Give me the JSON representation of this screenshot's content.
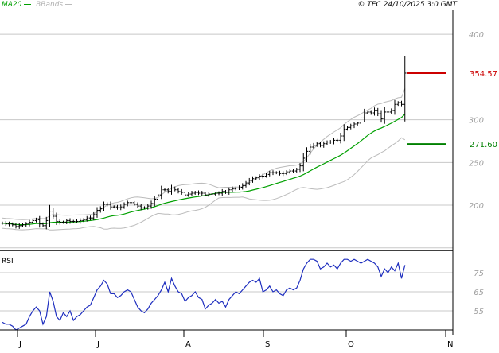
{
  "header": {
    "ma_label": "MA20",
    "bbands_label": "BBands",
    "copyright": "© TEC 24/10/2025 3:0 GMT"
  },
  "rsi_panel": {
    "label": "RSI"
  },
  "colors": {
    "price": "#000000",
    "ma": "#00a000",
    "bbands": "#bbbbbb",
    "rsi": "#1f2fbf",
    "grid": "#c8c8c8",
    "axis_text": "#a0a0a0",
    "high_marker": "#cc0000",
    "low_marker": "#008000"
  },
  "chart_data": [
    {
      "type": "ohlc",
      "title": "",
      "x_tick_labels": [
        "J",
        "J",
        "A",
        "S",
        "O",
        "N"
      ],
      "y_ticks": [
        200,
        250,
        300,
        400
      ],
      "y_tick_labels": [
        "200",
        "250",
        "300",
        "400"
      ],
      "ylim": [
        147,
        429
      ],
      "grid": true,
      "markers": [
        {
          "label": "354.57",
          "value": 354.57,
          "kind": "high"
        },
        {
          "label": "271.60",
          "value": 271.6,
          "kind": "low"
        }
      ],
      "series": [
        {
          "name": "MA20",
          "kind": "ma"
        },
        {
          "name": "BBands",
          "kind": "bands"
        }
      ],
      "close": [
        179,
        178,
        178,
        177,
        175,
        176,
        177,
        178,
        180,
        182,
        183,
        178,
        176,
        182,
        193,
        187,
        181,
        180,
        180,
        182,
        181,
        181,
        181,
        182,
        183,
        185,
        185,
        189,
        194,
        196,
        201,
        201,
        198,
        198,
        197,
        198,
        201,
        203,
        203,
        201,
        199,
        197,
        197,
        199,
        202,
        207,
        212,
        218,
        218,
        216,
        220,
        218,
        216,
        215,
        212,
        213,
        214,
        215,
        214,
        214,
        212,
        213,
        213,
        214,
        214,
        216,
        215,
        218,
        219,
        220,
        221,
        223,
        226,
        229,
        231,
        232,
        234,
        234,
        236,
        238,
        238,
        238,
        237,
        237,
        239,
        240,
        240,
        242,
        246,
        255,
        263,
        268,
        270,
        272,
        270,
        272,
        274,
        274,
        276,
        276,
        281,
        289,
        291,
        293,
        295,
        296,
        302,
        308,
        309,
        308,
        311,
        307,
        301,
        309,
        309,
        311,
        318,
        320,
        318,
        354.57
      ]
    },
    {
      "type": "line",
      "title": "",
      "y_ticks": [
        55,
        65,
        75
      ],
      "y_tick_labels": [
        "55",
        "65",
        "75"
      ],
      "ylim": [
        45,
        85
      ],
      "series": [
        {
          "name": "",
          "values": [
            49,
            48,
            48,
            47,
            45,
            46,
            47,
            48,
            52,
            55,
            57,
            55,
            48,
            52,
            65,
            60,
            52,
            50,
            54,
            52,
            55,
            50,
            52,
            53,
            55,
            57,
            58,
            62,
            66,
            68,
            71,
            69,
            64,
            64,
            62,
            63,
            65,
            66,
            65,
            61,
            57,
            55,
            54,
            56,
            59,
            61,
            63,
            66,
            70,
            65,
            72,
            68,
            65,
            64,
            60,
            62,
            63,
            65,
            62,
            61,
            56,
            58,
            59,
            61,
            59,
            60,
            57,
            61,
            63,
            65,
            64,
            66,
            68,
            70,
            71,
            70,
            72,
            65,
            66,
            68,
            65,
            66,
            64,
            63,
            66,
            67,
            66,
            67,
            71,
            77,
            80,
            82,
            82,
            81,
            77,
            78,
            80,
            78,
            79,
            77,
            80,
            82,
            82,
            81,
            82,
            81,
            80,
            81,
            82,
            81,
            80,
            78,
            73,
            77,
            75,
            78,
            76,
            80,
            72,
            79
          ]
        }
      ]
    }
  ]
}
